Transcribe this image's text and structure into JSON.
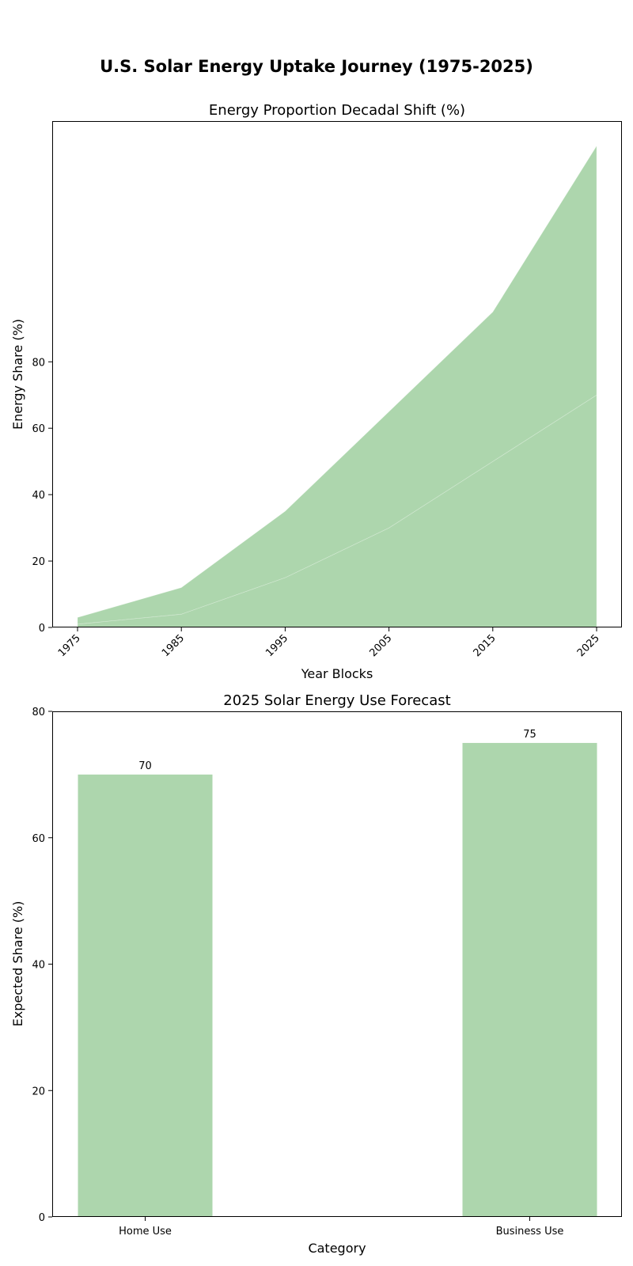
{
  "figure": {
    "title": "U.S. Solar Energy Uptake Journey (1975-2025)"
  },
  "chart_data": [
    {
      "type": "area",
      "stacked": true,
      "title": "Energy Proportion Decadal Shift (%)",
      "xlabel": "Year Blocks",
      "ylabel": "Energy Share (%)",
      "categories": [
        "1975",
        "1985",
        "1995",
        "2005",
        "2015",
        "2025"
      ],
      "series": [
        {
          "values": [
            1,
            4,
            15,
            30,
            50,
            70
          ],
          "color": "#add6ad"
        },
        {
          "values": [
            2,
            8,
            20,
            35,
            45,
            75
          ],
          "color": "#add6ad"
        }
      ],
      "ylim": [
        0,
        152.5
      ],
      "yticks": [
        0,
        20,
        40,
        60,
        80
      ],
      "grid": false,
      "xtick_rotation": 45
    },
    {
      "type": "bar",
      "title": "2025 Solar Energy Use Forecast",
      "xlabel": "Category",
      "ylabel": "Expected Share (%)",
      "categories": [
        "Home Use",
        "Business Use"
      ],
      "values": [
        70,
        75
      ],
      "data_labels": [
        "70",
        "75"
      ],
      "color": "#add6ad",
      "ylim": [
        0,
        80
      ],
      "yticks": [
        0,
        20,
        40,
        60,
        80
      ],
      "grid": false
    }
  ]
}
